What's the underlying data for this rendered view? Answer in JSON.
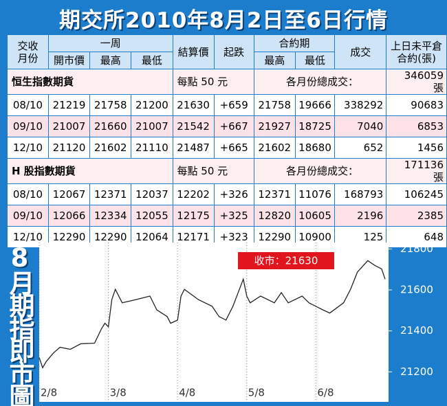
{
  "header": {
    "title": "期交所2010年8月2日至6日行情"
  },
  "table": {
    "head1": [
      "交收\n月份",
      "一周",
      "結算價",
      "起跌",
      "合約期",
      "成交",
      "上日未平倉\n合約(張)"
    ],
    "head2": [
      "開市價",
      "最高",
      "最低",
      "最高",
      "最低"
    ],
    "sections": [
      {
        "name": "恒生指數期貨",
        "note": "每點 50 元",
        "total_label": "各月份總成交：",
        "total": "346059 張",
        "rows": [
          [
            "08/10",
            "21219",
            "21758",
            "21200",
            "21630",
            "+659",
            "21758",
            "19666",
            "338292",
            "90683"
          ],
          [
            "09/10",
            "21007",
            "21660",
            "21007",
            "21542",
            "+667",
            "21927",
            "18725",
            "7040",
            "6853"
          ],
          [
            "12/10",
            "21120",
            "21602",
            "21110",
            "21487",
            "+665",
            "21602",
            "18680",
            "652",
            "1456"
          ]
        ]
      },
      {
        "name": "H 股指數期貨",
        "note": "每點 50 元",
        "total_label": "各月份總成交：",
        "total": "171136 張",
        "rows": [
          [
            "08/10",
            "12067",
            "12371",
            "12037",
            "12202",
            "+326",
            "12371",
            "11076",
            "168793",
            "106245"
          ],
          [
            "09/10",
            "12066",
            "12334",
            "12055",
            "12175",
            "+325",
            "12820",
            "10605",
            "2196",
            "2385"
          ],
          [
            "12/10",
            "12290",
            "12290",
            "12064",
            "12171",
            "+323",
            "12290",
            "10900",
            "125",
            "648"
          ]
        ]
      }
    ]
  },
  "chart_data": {
    "type": "line",
    "title": "8月期指即市圖",
    "annotation": "收市：21630",
    "color": "#222222",
    "grid": "x",
    "x": [
      0,
      0.05,
      0.1,
      0.2,
      0.3,
      0.45,
      0.6,
      0.8,
      0.9,
      0.95,
      1.0,
      1.05,
      1.1,
      1.2,
      1.4,
      1.6,
      1.7,
      1.85,
      1.9,
      2.0,
      2.05,
      2.1,
      2.3,
      2.5,
      2.6,
      2.7,
      2.8,
      2.95,
      3.0,
      3.05,
      3.2,
      3.4,
      3.5,
      3.6,
      3.8,
      3.9,
      4.0,
      4.1,
      4.2,
      4.4,
      4.5,
      4.6,
      4.75,
      4.85,
      4.95,
      5.0
    ],
    "values": [
      21270,
      21220,
      21250,
      21290,
      21320,
      21310,
      21337,
      21340,
      21410,
      21437,
      21420,
      21553,
      21603,
      21537,
      21553,
      21570,
      21503,
      21470,
      21437,
      21453,
      21570,
      21603,
      21553,
      21520,
      21470,
      21453,
      21520,
      21653,
      21570,
      21537,
      21570,
      21537,
      21587,
      21537,
      21570,
      21537,
      21520,
      21503,
      21487,
      21537,
      21603,
      21687,
      21743,
      21720,
      21703,
      21653
    ],
    "xlim": [
      0,
      5.05
    ],
    "xticks": [
      {
        "value": 0,
        "label": "2/8"
      },
      {
        "value": 1,
        "label": "3/8"
      },
      {
        "value": 2,
        "label": "4/8"
      },
      {
        "value": 3,
        "label": "5/8"
      },
      {
        "value": 4,
        "label": "6/8"
      }
    ],
    "ylim": [
      21070,
      21825
    ],
    "yticks": [
      21200,
      21400,
      21600,
      21800
    ]
  }
}
